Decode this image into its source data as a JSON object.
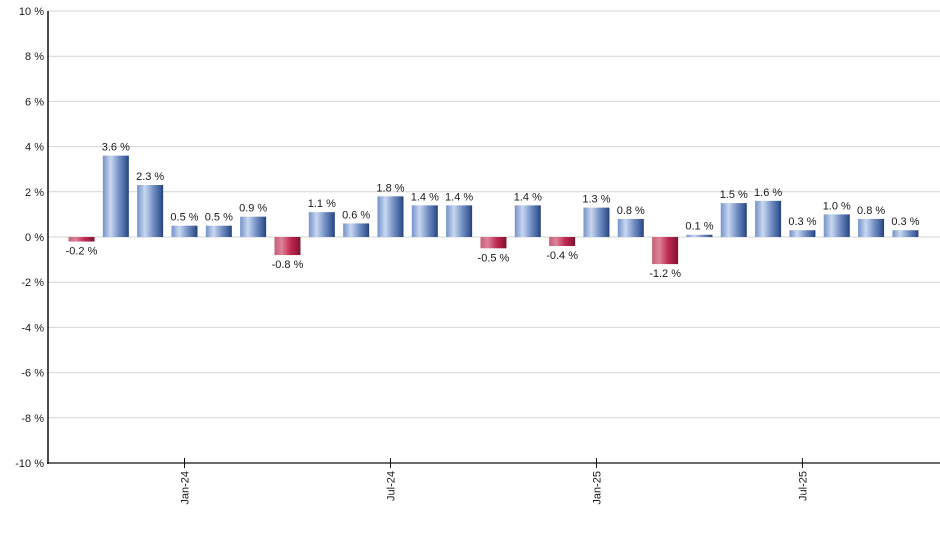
{
  "chart_data": {
    "type": "bar",
    "title": "",
    "xlabel": "",
    "ylabel": "",
    "ylim": [
      -10,
      10
    ],
    "grid": true,
    "legend": false,
    "values": [
      -0.2,
      3.6,
      2.3,
      0.5,
      0.5,
      0.9,
      -0.8,
      1.1,
      0.6,
      1.8,
      1.4,
      1.4,
      -0.5,
      1.4,
      -0.4,
      1.3,
      0.8,
      -1.2,
      0.1,
      1.5,
      1.6,
      0.3,
      1.0,
      0.8,
      0.3
    ],
    "value_labels": [
      "-0.2 %",
      "3.6 %",
      "2.3 %",
      "0.5 %",
      "0.5 %",
      "0.9 %",
      "-0.8 %",
      "1.1 %",
      "0.6 %",
      "1.8 %",
      "1.4 %",
      "1.4 %",
      "-0.5 %",
      "1.4 %",
      "-0.4 %",
      "1.3 %",
      "0.8 %",
      "-1.2 %",
      "0.1 %",
      "1.5 %",
      "1.6 %",
      "0.3 %",
      "1.0 %",
      "0.8 %",
      "0.3 %"
    ],
    "x_ticks": [
      {
        "bar_index": 3,
        "label": "Jan-24"
      },
      {
        "bar_index": 9,
        "label": "Jul-24"
      },
      {
        "bar_index": 15,
        "label": "Jan-25"
      },
      {
        "bar_index": 21,
        "label": "Jul-25"
      }
    ],
    "y_ticks": [
      {
        "value": 10,
        "label": "10 %"
      },
      {
        "value": 8,
        "label": "8 %"
      },
      {
        "value": 6,
        "label": "6 %"
      },
      {
        "value": 4,
        "label": "4 %"
      },
      {
        "value": 2,
        "label": "2 %"
      },
      {
        "value": 0,
        "label": "0 %"
      },
      {
        "value": -2,
        "label": "-2 %"
      },
      {
        "value": -4,
        "label": "-4 %"
      },
      {
        "value": -6,
        "label": "-6 %"
      },
      {
        "value": -8,
        "label": "-8 %"
      },
      {
        "value": -10,
        "label": "-10 %"
      }
    ],
    "colors": {
      "positive_gradient": [
        {
          "offset": 0,
          "color": "#7492c8"
        },
        {
          "offset": 0.3,
          "color": "#c9d8f1"
        },
        {
          "offset": 0.62,
          "color": "#7390c5"
        },
        {
          "offset": 0.9,
          "color": "#3b5995"
        },
        {
          "offset": 1,
          "color": "#23407a"
        }
      ],
      "negative_gradient": [
        {
          "offset": 0,
          "color": "#c75f79"
        },
        {
          "offset": 0.28,
          "color": "#dc8299"
        },
        {
          "offset": 0.62,
          "color": "#c02952"
        },
        {
          "offset": 1,
          "color": "#801233"
        }
      ],
      "gridline": "#d4d4d4",
      "axis": "#111111",
      "label": "#1a1a1a",
      "tick_label": "#1a1a1a"
    }
  }
}
